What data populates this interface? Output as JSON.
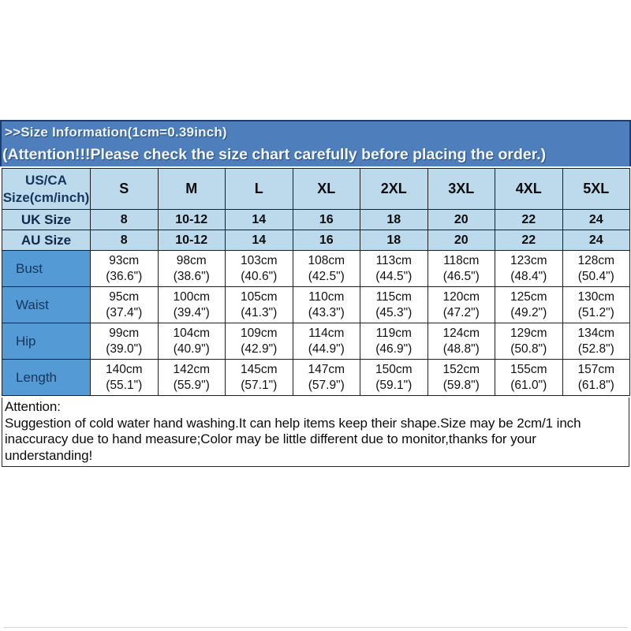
{
  "header": {
    "title": ">>Size  Information(1cm=0.39inch)",
    "subtitle": "(Attention!!!Please check the size chart carefully before placing the order.)"
  },
  "table": {
    "corner_label_line1": "US/CA",
    "corner_label_line2": "Size(cm/inch)",
    "size_columns": [
      "S",
      "M",
      "L",
      "XL",
      "2XL",
      "3XL",
      "4XL",
      "5XL"
    ],
    "conversion_rows": [
      {
        "label": "UK Size",
        "values": [
          "8",
          "10-12",
          "14",
          "16",
          "18",
          "20",
          "22",
          "24"
        ]
      },
      {
        "label": "AU Size",
        "values": [
          "8",
          "10-12",
          "14",
          "16",
          "18",
          "20",
          "22",
          "24"
        ]
      }
    ],
    "measurement_rows": [
      {
        "label": "Bust",
        "cm": [
          "93cm",
          "98cm",
          "103cm",
          "108cm",
          "113cm",
          "118cm",
          "123cm",
          "128cm"
        ],
        "inch": [
          "(36.6\")",
          "(38.6\")",
          "(40.6\")",
          "(42.5\")",
          "(44.5\")",
          "(46.5\")",
          "(48.4\")",
          "(50.4\")"
        ]
      },
      {
        "label": "Waist",
        "cm": [
          "95cm",
          "100cm",
          "105cm",
          "110cm",
          "115cm",
          "120cm",
          "125cm",
          "130cm"
        ],
        "inch": [
          "(37.4\")",
          "(39.4\")",
          "(41.3\")",
          "(43.3\")",
          "(45.3\")",
          "(47.2\")",
          "(49.2\")",
          "(51.2\")"
        ]
      },
      {
        "label": "Hip",
        "cm": [
          "99cm",
          "104cm",
          "109cm",
          "114cm",
          "119cm",
          "124cm",
          "129cm",
          "134cm"
        ],
        "inch": [
          "(39.0\")",
          "(40.9\")",
          "(42.9\")",
          "(44.9\")",
          "(46.9\")",
          "(48.8\")",
          "(50.8\")",
          "(52.8\")"
        ]
      },
      {
        "label": "Length",
        "cm": [
          "140cm",
          "142cm",
          "145cm",
          "147cm",
          "150cm",
          "152cm",
          "155cm",
          "157cm"
        ],
        "inch": [
          "(55.1\")",
          "(55.9\")",
          "(57.1\")",
          "(57.9\")",
          "(59.1\")",
          "(59.8\")",
          "(61.0\")",
          "(61.8\")"
        ]
      }
    ]
  },
  "footer": {
    "attention_label": "Attention:",
    "note": "Suggestion of cold water hand washing.It can help items keep their shape.Size may be 2cm/1 inch inaccuracy due to hand measure;Color may be little different due to monitor,thanks for your understanding!"
  },
  "colors": {
    "banner_blue": "#4e7fbc",
    "banner_border_navy": "#1c3e6e",
    "header_light_blue": "#bdd9ec",
    "row_label_blue": "#549ad4",
    "navy_text": "#17375e",
    "table_border": "#1f1f1f"
  }
}
